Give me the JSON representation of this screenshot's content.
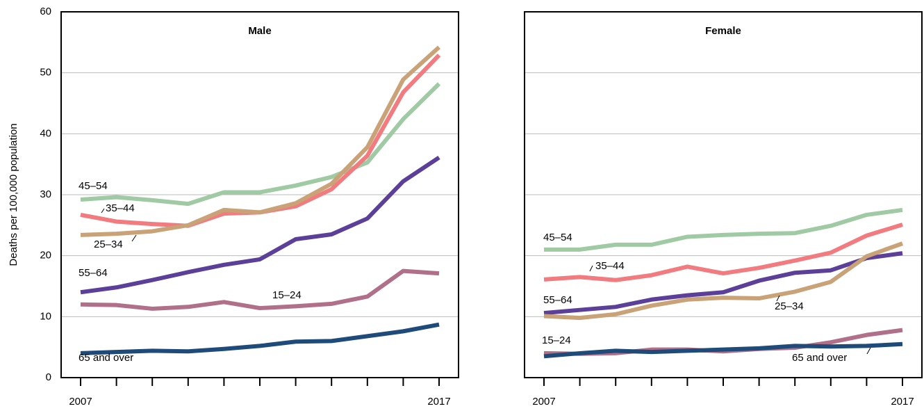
{
  "chart_data": [
    {
      "type": "line",
      "title": "Male",
      "y_label": "Deaths per 100,000 population",
      "categories": [
        "2007",
        null,
        null,
        null,
        null,
        null,
        null,
        null,
        null,
        null,
        "2017"
      ],
      "ylim": [
        0,
        60
      ],
      "yticks": [
        0,
        10,
        20,
        30,
        40,
        50,
        60
      ],
      "grid": true,
      "series": [
        {
          "name": "45–54",
          "color": "#9fcaa3",
          "values": [
            29.2,
            29.6,
            29.1,
            28.5,
            30.4,
            30.4,
            31.5,
            32.9,
            35.3,
            42.4,
            48.2
          ]
        },
        {
          "name": "35–44",
          "color": "#f27b80",
          "values": [
            26.7,
            25.6,
            25.2,
            24.9,
            26.9,
            27.1,
            28.1,
            30.9,
            36.4,
            46.8,
            52.9
          ]
        },
        {
          "name": "25–34",
          "color": "#c9a277",
          "values": [
            23.4,
            23.6,
            24.0,
            25.0,
            27.5,
            27.1,
            28.6,
            31.8,
            37.8,
            48.9,
            54.2
          ]
        },
        {
          "name": "55–64",
          "color": "#5b3f98",
          "values": [
            14.0,
            14.8,
            16.0,
            17.3,
            18.5,
            19.4,
            22.7,
            23.5,
            26.1,
            32.2,
            36.1
          ]
        },
        {
          "name": "15–24",
          "color": "#b07089",
          "values": [
            12.0,
            11.9,
            11.3,
            11.6,
            12.4,
            11.4,
            11.7,
            12.1,
            13.3,
            17.5,
            17.1
          ]
        },
        {
          "name": "65 and over",
          "color": "#1e4b7a",
          "values": [
            4.0,
            4.2,
            4.4,
            4.3,
            4.7,
            5.2,
            5.9,
            6.0,
            6.8,
            7.6,
            8.7
          ]
        }
      ]
    },
    {
      "type": "line",
      "title": "Female",
      "categories": [
        "2007",
        null,
        null,
        null,
        null,
        null,
        null,
        null,
        null,
        null,
        "2017"
      ],
      "ylim": [
        0,
        60
      ],
      "yticks": [
        0,
        10,
        20,
        30,
        40,
        50,
        60
      ],
      "grid": true,
      "series": [
        {
          "name": "45–54",
          "color": "#9fcaa3",
          "values": [
            21.0,
            21.0,
            21.8,
            21.8,
            23.1,
            23.4,
            23.6,
            23.7,
            24.9,
            26.7,
            27.5
          ]
        },
        {
          "name": "35–44",
          "color": "#f27b80",
          "values": [
            16.1,
            16.5,
            16.0,
            16.8,
            18.2,
            17.1,
            18.0,
            19.2,
            20.5,
            23.3,
            25.1
          ]
        },
        {
          "name": "55–64",
          "color": "#5b3f98",
          "values": [
            10.6,
            11.1,
            11.6,
            12.8,
            13.5,
            14.0,
            15.9,
            17.2,
            17.6,
            19.6,
            20.4
          ]
        },
        {
          "name": "25–34",
          "color": "#c9a277",
          "values": [
            10.1,
            9.8,
            10.4,
            11.8,
            12.8,
            13.1,
            13.0,
            14.1,
            15.7,
            19.9,
            22.0
          ]
        },
        {
          "name": "15–24",
          "color": "#b07089",
          "values": [
            4.0,
            3.9,
            4.0,
            4.6,
            4.6,
            4.3,
            4.7,
            4.9,
            5.8,
            7.0,
            7.8
          ]
        },
        {
          "name": "65 and over",
          "color": "#1e4b7a",
          "values": [
            3.5,
            4.0,
            4.4,
            4.2,
            4.4,
            4.6,
            4.8,
            5.2,
            5.1,
            5.2,
            5.5
          ]
        }
      ]
    }
  ]
}
